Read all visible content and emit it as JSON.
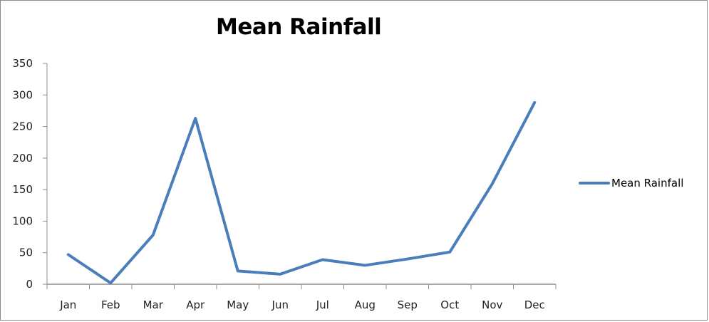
{
  "chart_data": {
    "type": "line",
    "title": "Mean Rainfall",
    "xlabel": "",
    "ylabel": "",
    "categories": [
      "Jan",
      "Feb",
      "Mar",
      "Apr",
      "May",
      "Jun",
      "Jul",
      "Aug",
      "Sep",
      "Oct",
      "Nov",
      "Dec"
    ],
    "series": [
      {
        "name": "Mean Rainfall",
        "color": "#4a7ebb",
        "values": [
          47,
          2,
          78,
          263,
          21,
          16,
          39,
          30,
          40,
          51,
          159,
          288
        ]
      }
    ],
    "ylim": [
      0,
      350
    ],
    "yticks": [
      0,
      50,
      100,
      150,
      200,
      250,
      300,
      350
    ],
    "grid": false,
    "legend_position": "right"
  }
}
